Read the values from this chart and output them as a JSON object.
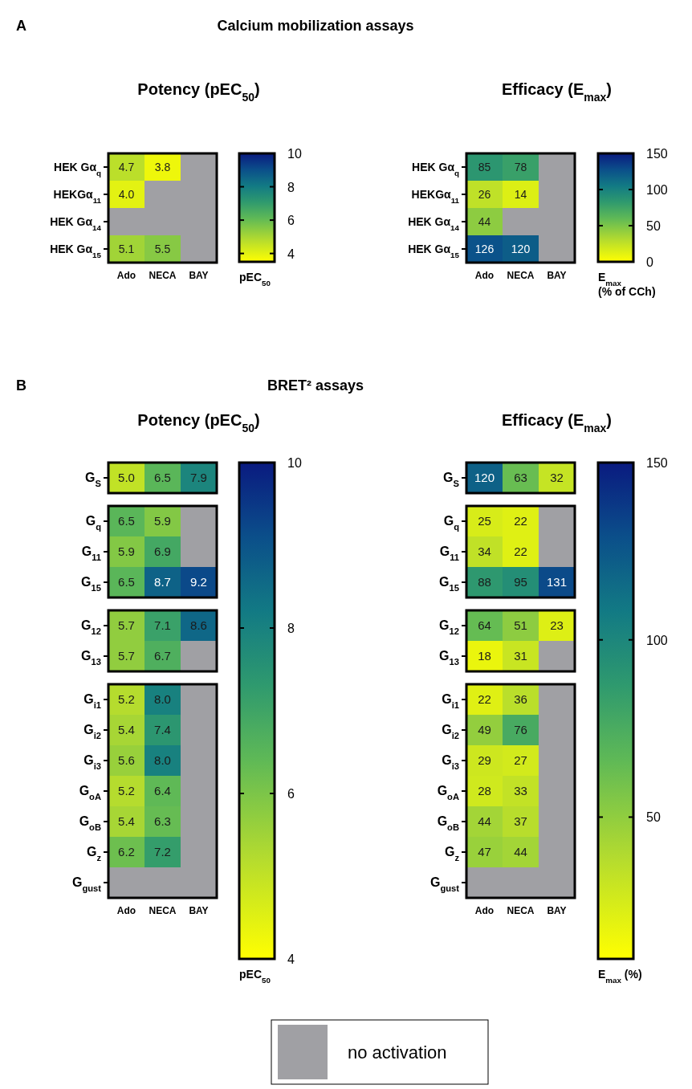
{
  "chart_data": [
    {
      "type": "heatmap",
      "title": "Potency (pEC$_{50}$)",
      "annotations": [
        "A",
        "Calcium mobilization assays"
      ],
      "categories": [
        "Ado",
        "NECA",
        "BAY"
      ],
      "y_categories": [
        "HEK Gα$_{q}$",
        "HEKGα$_{11}$",
        "HEK Gα$_{14}$",
        "HEK Gα$_{15}$"
      ],
      "cells": [
        [
          4.7,
          3.8,
          null
        ],
        [
          4.0,
          null,
          null
        ],
        [
          null,
          null,
          null
        ],
        [
          5.1,
          5.5,
          null
        ]
      ],
      "cell_labels": [
        [
          "4.7",
          "3.8",
          null
        ],
        [
          "4.0",
          null,
          null
        ],
        [
          null,
          null,
          null
        ],
        [
          "5.1",
          "5.5",
          null
        ]
      ],
      "data_labels": true,
      "clim": [
        3.5,
        10
      ],
      "cticks": [
        4,
        6,
        8,
        10
      ],
      "clabel": "pEC$_{50}$"
    },
    {
      "type": "heatmap",
      "title": "Efficacy (E$_{max}$)",
      "categories": [
        "Ado",
        "NECA",
        "BAY"
      ],
      "y_categories": [
        "HEK Gα$_{q}$",
        "HEKGα$_{11}$",
        "HEK Gα$_{14}$",
        "HEK Gα$_{15}$"
      ],
      "cells": [
        [
          85,
          78,
          null
        ],
        [
          26,
          14,
          null
        ],
        [
          44,
          null,
          null
        ],
        [
          126,
          120,
          null
        ]
      ],
      "data_labels": true,
      "clim": [
        0,
        150
      ],
      "cticks": [
        0,
        50,
        100,
        150
      ],
      "clabel": "E$_{max}$\n(% of CCh)"
    },
    {
      "type": "heatmap",
      "title": "Potency (pEC$_{50}$)",
      "annotations": [
        "B",
        "BRET² assays"
      ],
      "categories": [
        null,
        null,
        null
      ],
      "y_categories": [
        "G$_{S}$"
      ],
      "cells": [
        [
          5.0,
          6.5,
          7.9
        ]
      ],
      "cell_labels": [
        [
          "5.0",
          "6.5",
          "7.9"
        ]
      ],
      "data_labels": true,
      "tick_labels": "y"
    },
    {
      "type": "heatmap",
      "categories": [
        null,
        null,
        null
      ],
      "y_categories": [
        "G$_{q}$",
        "G$_{11}$",
        "G$_{15}$"
      ],
      "cells": [
        [
          6.5,
          5.9,
          null
        ],
        [
          5.9,
          6.9,
          null
        ],
        [
          6.5,
          8.7,
          9.2
        ]
      ],
      "data_labels": true,
      "tick_labels": "y"
    },
    {
      "type": "heatmap",
      "categories": [
        null,
        null,
        null
      ],
      "y_categories": [
        "G$_{12}$",
        "G$_{13}$"
      ],
      "cells": [
        [
          5.7,
          7.1,
          8.6
        ],
        [
          5.7,
          6.7,
          null
        ]
      ],
      "data_labels": true,
      "tick_labels": "y"
    },
    {
      "type": "heatmap",
      "categories": [
        "Ado",
        "NECA",
        "BAY"
      ],
      "y_categories": [
        "G$_{i1}$",
        "G$_{i2}$",
        "G$_{i3}$",
        "G$_{oA}$",
        "G$_{oB}$",
        "G$_{z}$",
        "G$_{gust}$"
      ],
      "cells": [
        [
          5.2,
          8.0,
          null
        ],
        [
          5.4,
          7.4,
          null
        ],
        [
          5.6,
          8.0,
          null
        ],
        [
          5.2,
          6.4,
          null
        ],
        [
          5.4,
          6.3,
          null
        ],
        [
          6.2,
          7.2,
          null
        ],
        [
          null,
          null,
          null
        ]
      ],
      "cell_labels": [
        [
          "5.2",
          "8.0",
          null
        ],
        [
          "5.4",
          "7.4",
          null
        ],
        [
          "5.6",
          "8.0",
          null
        ],
        [
          "5.2",
          "6.4",
          null
        ],
        [
          "5.4",
          "6.3",
          null
        ],
        [
          "6.2",
          "7.2",
          null
        ],
        [
          null,
          null,
          null
        ]
      ],
      "data_labels": true,
      "clim": [
        4,
        10
      ],
      "cticks": [
        4,
        6,
        8,
        10
      ],
      "clabel": "pEC$_{50}$"
    },
    {
      "type": "heatmap",
      "title": "Efficacy (E$_{max}$)",
      "categories": [
        null,
        null,
        null
      ],
      "y_categories": [
        "G$_{S}$"
      ],
      "cells": [
        [
          120,
          63,
          32
        ]
      ],
      "data_labels": true,
      "tick_labels": "y"
    },
    {
      "type": "heatmap",
      "categories": [
        null,
        null,
        null
      ],
      "y_categories": [
        "G$_{q}$",
        "G$_{11}$",
        "G$_{15}$"
      ],
      "cells": [
        [
          25,
          22,
          null
        ],
        [
          34,
          22,
          null
        ],
        [
          88,
          95,
          131
        ]
      ],
      "data_labels": true,
      "tick_labels": "y"
    },
    {
      "type": "heatmap",
      "categories": [
        null,
        null,
        null
      ],
      "y_categories": [
        "G$_{12}$",
        "G$_{13}$"
      ],
      "cells": [
        [
          64,
          51,
          23
        ],
        [
          18,
          31,
          null
        ]
      ],
      "data_labels": true,
      "tick_labels": "y"
    },
    {
      "type": "heatmap",
      "categories": [
        "Ado",
        "NECA",
        "BAY"
      ],
      "y_categories": [
        "G$_{i1}$",
        "G$_{i2}$",
        "G$_{i3}$",
        "G$_{oA}$",
        "G$_{oB}$",
        "G$_{z}$",
        "G$_{gust}$"
      ],
      "cells": [
        [
          22,
          36,
          null
        ],
        [
          49,
          76,
          null
        ],
        [
          29,
          27,
          null
        ],
        [
          28,
          33,
          null
        ],
        [
          44,
          37,
          null
        ],
        [
          47,
          44,
          null
        ],
        [
          null,
          null,
          null
        ]
      ],
      "data_labels": true,
      "clim": [
        10,
        150
      ],
      "cticks": [
        50,
        100,
        150
      ],
      "clabel": "E$_{max}$ (%)",
      "annotations": [
        "no activation"
      ]
    }
  ]
}
